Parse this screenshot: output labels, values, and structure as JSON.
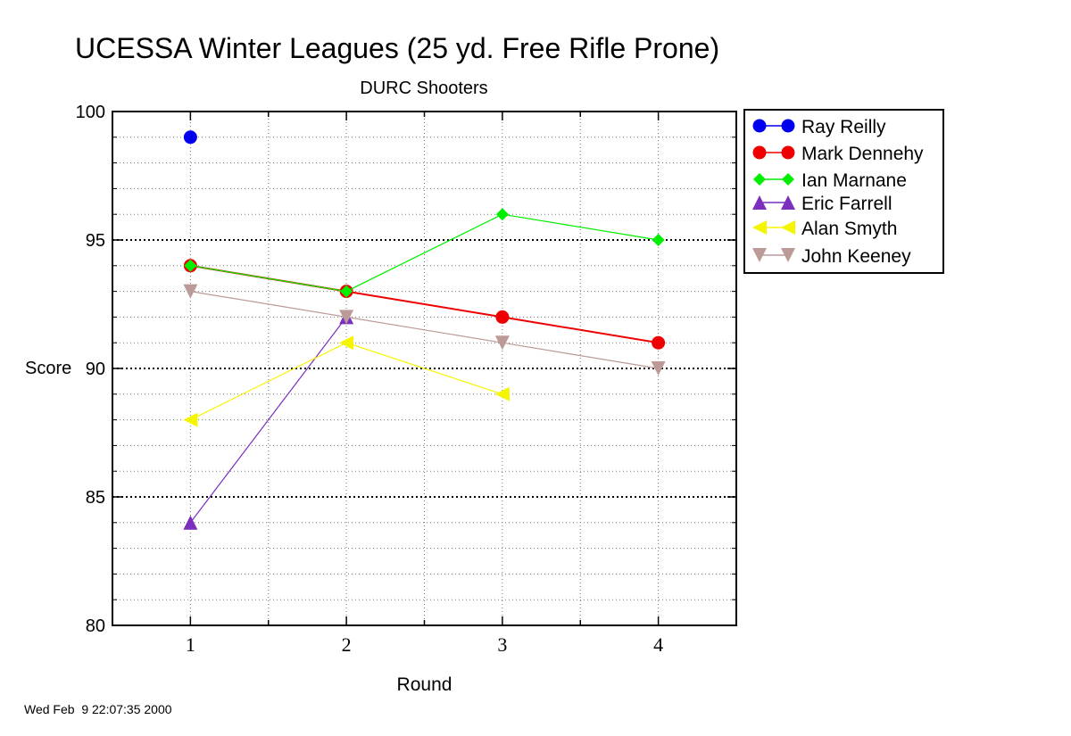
{
  "chart_data": {
    "type": "line",
    "title": "UCESSA Winter Leagues (25 yd. Free Rifle Prone)",
    "subtitle": "DURC Shooters",
    "xlabel": "Round",
    "ylabel": "Score",
    "x": [
      1,
      2,
      3,
      4
    ],
    "xlim": [
      0.5,
      4.5
    ],
    "ylim": [
      80,
      100
    ],
    "x_ticks": [
      "1",
      "2",
      "3",
      "4"
    ],
    "y_ticks": [
      "80",
      "85",
      "90",
      "95",
      "100"
    ],
    "grid": true,
    "legend_position": "outside-right-top",
    "series": [
      {
        "name": "Ray Reilly",
        "color": "#0000ee",
        "marker": "circle",
        "points": [
          [
            1,
            99
          ]
        ]
      },
      {
        "name": "Mark Dennehy",
        "color": "#ee0000",
        "marker": "circle",
        "points": [
          [
            1,
            94
          ],
          [
            2,
            93
          ],
          [
            3,
            92
          ],
          [
            4,
            91
          ]
        ]
      },
      {
        "name": "Ian Marnane",
        "color": "#00ee00",
        "marker": "diamond",
        "points": [
          [
            1,
            94
          ],
          [
            2,
            93
          ],
          [
            3,
            96
          ],
          [
            4,
            95
          ]
        ]
      },
      {
        "name": "Eric Farrell",
        "color": "#7a2fbf",
        "marker": "triangle-up",
        "points": [
          [
            1,
            84
          ],
          [
            2,
            92
          ]
        ]
      },
      {
        "name": "Alan Smyth",
        "color": "#f5f500",
        "marker": "triangle-left",
        "points": [
          [
            1,
            88
          ],
          [
            2,
            91
          ],
          [
            3,
            89
          ]
        ]
      },
      {
        "name": "John Keeney",
        "color": "#bc9a98",
        "marker": "triangle-down",
        "points": [
          [
            1,
            93
          ],
          [
            2,
            92
          ],
          [
            3,
            91
          ],
          [
            4,
            90
          ]
        ]
      }
    ]
  },
  "footer": {
    "timestamp": "Wed Feb  9 22:07:35 2000"
  }
}
